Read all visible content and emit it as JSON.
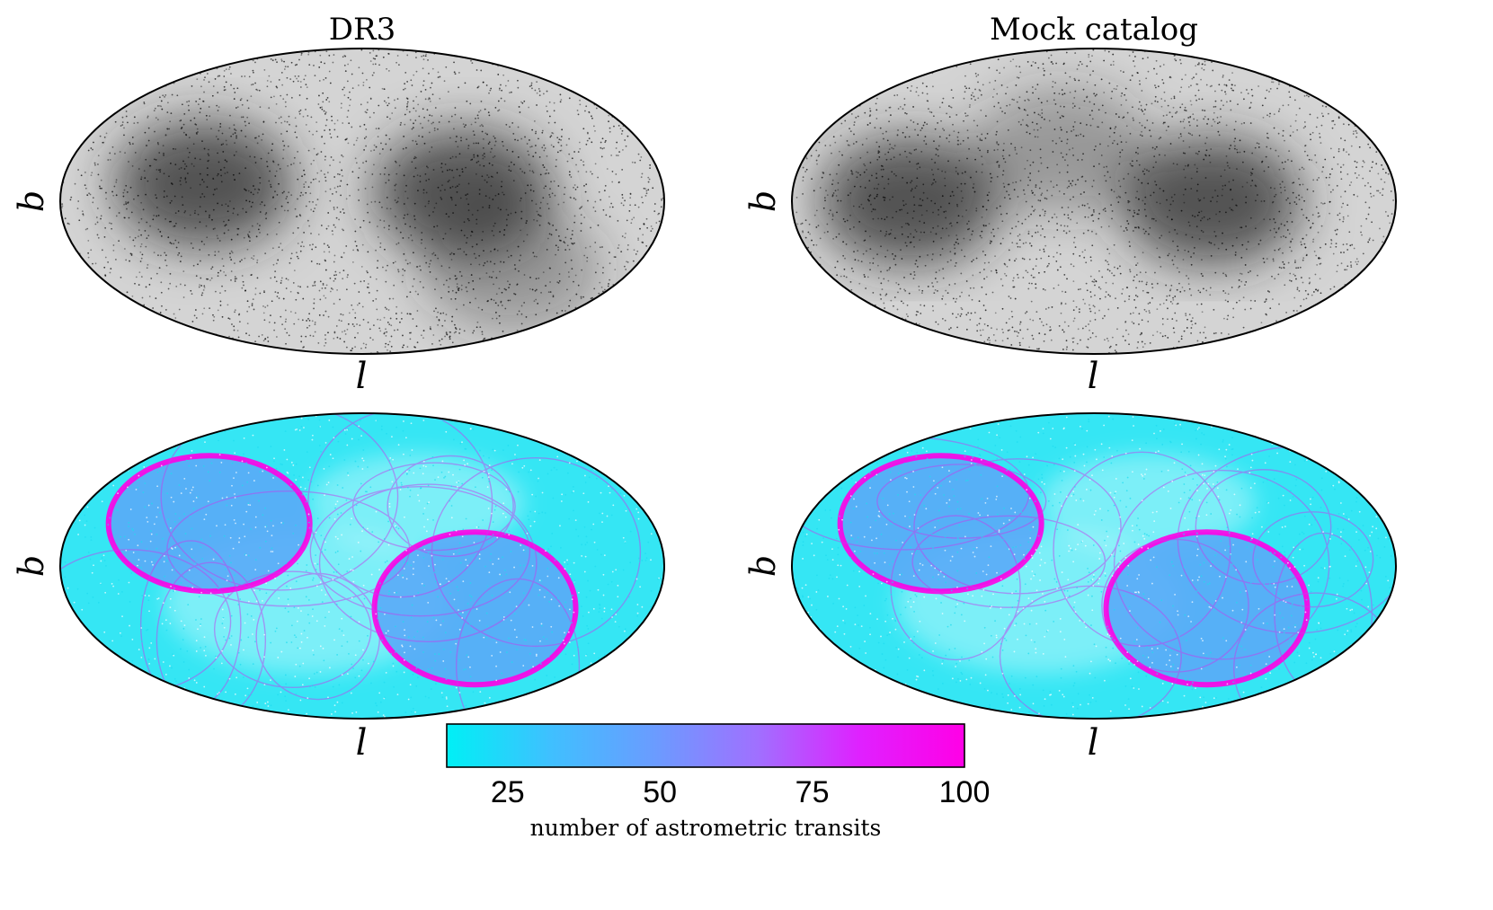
{
  "chart_data": [
    {
      "type": "scatter",
      "panel": "top-left",
      "projection": "mollweide",
      "title": "DR3",
      "xlabel": "l",
      "ylabel": "b",
      "marker_color": "#000000",
      "dense_regions": [
        {
          "l": 95,
          "b": 10
        },
        {
          "l": -60,
          "b": 5
        },
        {
          "l": -100,
          "b": -40
        }
      ]
    },
    {
      "type": "scatter",
      "panel": "top-right",
      "projection": "mollweide",
      "title": "Mock catalog",
      "xlabel": "l",
      "ylabel": "b",
      "marker_color": "#000000",
      "dense_regions": [
        {
          "l": 110,
          "b": 0
        },
        {
          "l": -70,
          "b": 0
        },
        {
          "l": 20,
          "b": 30
        }
      ]
    },
    {
      "type": "scatter",
      "panel": "bottom-left",
      "projection": "mollweide",
      "title": "",
      "xlabel": "l",
      "ylabel": "b",
      "color_variable": "number of astrometric transits",
      "scan_lobes": [
        {
          "l": 95,
          "b": 25,
          "rl": 60,
          "rb": 40
        },
        {
          "l": -70,
          "b": -25,
          "rl": 60,
          "rb": 45
        }
      ]
    },
    {
      "type": "scatter",
      "panel": "bottom-right",
      "projection": "mollweide",
      "title": "",
      "xlabel": "l",
      "ylabel": "b",
      "color_variable": "number of astrometric transits",
      "scan_lobes": [
        {
          "l": 95,
          "b": 25,
          "rl": 60,
          "rb": 40
        },
        {
          "l": -70,
          "b": -25,
          "rl": 60,
          "rb": 45
        }
      ]
    },
    {
      "type": "colorbar",
      "label": "number of astrometric transits",
      "range": [
        15,
        100
      ],
      "ticks": [
        25,
        50,
        75,
        100
      ],
      "tick_labels": [
        "25",
        "50",
        "75",
        "100"
      ],
      "colormap": [
        "#00f0f5",
        "#3fc0ff",
        "#6a9cff",
        "#a070ff",
        "#e020ff",
        "#ff00e6"
      ]
    }
  ]
}
